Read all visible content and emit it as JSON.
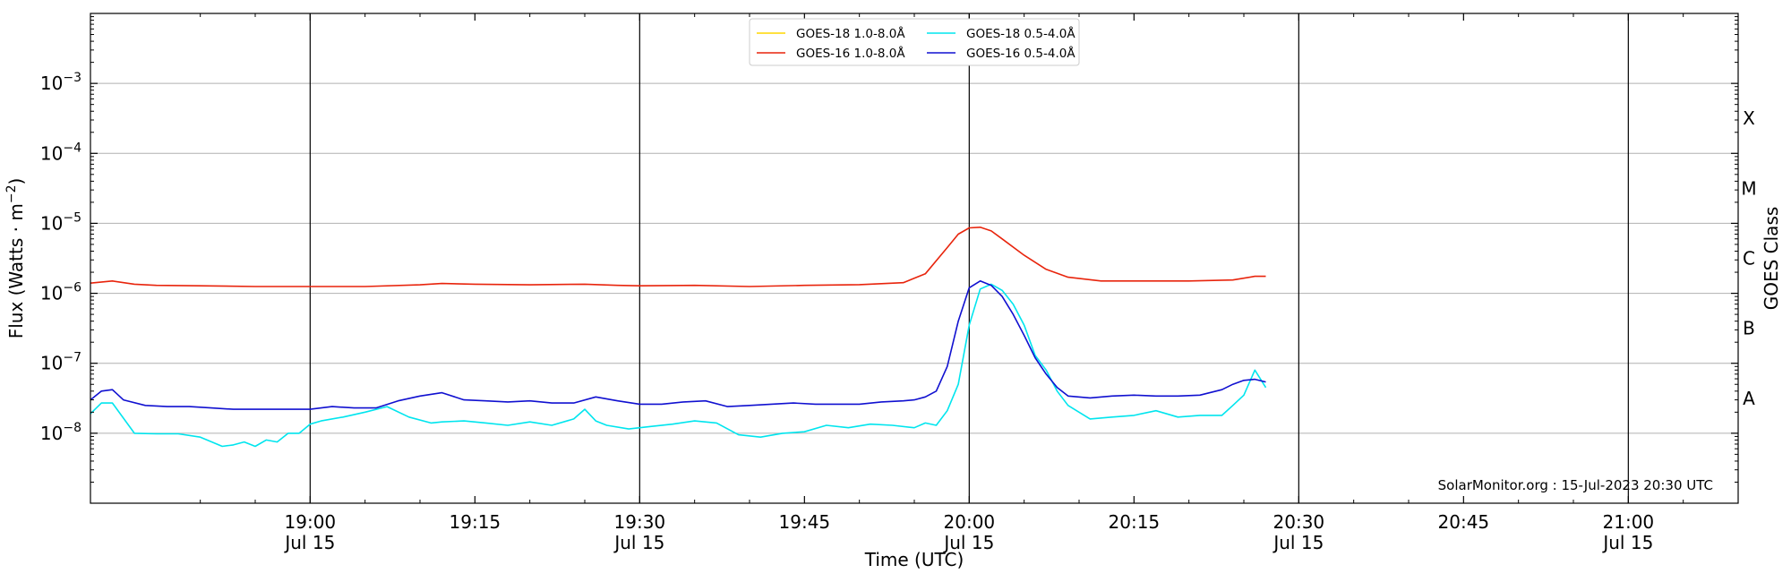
{
  "chart_data": {
    "type": "line",
    "xlabel": "Time (UTC)",
    "ylabel": "Flux (Watts · m⁻²)",
    "right_label": "GOES Class",
    "footer": "SolarMonitor.org : 15-Jul-2023 20:30 UTC",
    "y_scale": "log",
    "ylim": [
      "1e-9",
      "1e-2"
    ],
    "xlim": [
      "18:40",
      "21:10"
    ],
    "grid": "horizontal",
    "legend_position": "top-center",
    "x_ticks": [
      {
        "time": "19:00",
        "date": "Jul 15"
      },
      {
        "time": "19:15",
        "date": ""
      },
      {
        "time": "19:30",
        "date": "Jul 15"
      },
      {
        "time": "19:45",
        "date": ""
      },
      {
        "time": "20:00",
        "date": "Jul 15"
      },
      {
        "time": "20:15",
        "date": ""
      },
      {
        "time": "20:30",
        "date": "Jul 15"
      },
      {
        "time": "20:45",
        "date": ""
      },
      {
        "time": "21:00",
        "date": "Jul 15"
      }
    ],
    "vertical_lines": [
      "19:00",
      "19:30",
      "20:00",
      "20:30",
      "21:00"
    ],
    "y_ticks": [
      {
        "exp": -8,
        "label": "10",
        "sup": "−8"
      },
      {
        "exp": -7,
        "label": "10",
        "sup": "−7"
      },
      {
        "exp": -6,
        "label": "10",
        "sup": "−6"
      },
      {
        "exp": -5,
        "label": "10",
        "sup": "−5"
      },
      {
        "exp": -4,
        "label": "10",
        "sup": "−4"
      },
      {
        "exp": -3,
        "label": "10",
        "sup": "−3"
      }
    ],
    "goes_classes": [
      {
        "label": "A",
        "exp": -7.5
      },
      {
        "label": "B",
        "exp": -6.5
      },
      {
        "label": "C",
        "exp": -5.5
      },
      {
        "label": "M",
        "exp": -4.5
      },
      {
        "label": "X",
        "exp": -3.5
      }
    ],
    "series": [
      {
        "name": "GOES-18 1.0-8.0Å",
        "color": "#ffd700",
        "x": [],
        "y": []
      },
      {
        "name": "GOES-16 1.0-8.0Å",
        "color": "#e8240c",
        "x": [
          "18:40",
          "18:42",
          "18:44",
          "18:46",
          "18:50",
          "18:55",
          "19:00",
          "19:05",
          "19:10",
          "19:12",
          "19:15",
          "19:20",
          "19:25",
          "19:28",
          "19:30",
          "19:35",
          "19:40",
          "19:45",
          "19:50",
          "19:54",
          "19:56",
          "19:58",
          "19:59",
          "20:00",
          "20:01",
          "20:02",
          "20:03",
          "20:05",
          "20:07",
          "20:09",
          "20:12",
          "20:16",
          "20:20",
          "20:24",
          "20:26",
          "20:27"
        ],
        "y": [
          1.4e-06,
          1.5e-06,
          1.35e-06,
          1.3e-06,
          1.28e-06,
          1.25e-06,
          1.25e-06,
          1.25e-06,
          1.32e-06,
          1.38e-06,
          1.35e-06,
          1.32e-06,
          1.35e-06,
          1.3e-06,
          1.28e-06,
          1.3e-06,
          1.25e-06,
          1.3e-06,
          1.33e-06,
          1.42e-06,
          1.9e-06,
          4.5e-06,
          7e-06,
          8.6e-06,
          8.8e-06,
          7.8e-06,
          6e-06,
          3.5e-06,
          2.2e-06,
          1.7e-06,
          1.5e-06,
          1.5e-06,
          1.5e-06,
          1.55e-06,
          1.75e-06,
          1.75e-06
        ]
      },
      {
        "name": "GOES-18 0.5-4.0Å",
        "color": "#00e5ee",
        "x": [
          "18:40",
          "18:41",
          "18:42",
          "18:44",
          "18:46",
          "18:48",
          "18:50",
          "18:52",
          "18:53",
          "18:54",
          "18:55",
          "18:56",
          "18:57",
          "18:58",
          "18:59",
          "19:00",
          "19:01",
          "19:03",
          "19:05",
          "19:07",
          "19:09",
          "19:11",
          "19:12",
          "19:14",
          "19:16",
          "19:18",
          "19:20",
          "19:22",
          "19:24",
          "19:25",
          "19:26",
          "19:27",
          "19:29",
          "19:31",
          "19:33",
          "19:35",
          "19:37",
          "19:39",
          "19:41",
          "19:43",
          "19:45",
          "19:47",
          "19:49",
          "19:51",
          "19:53",
          "19:55",
          "19:56",
          "19:57",
          "19:58",
          "19:59",
          "20:00",
          "20:01",
          "20:02",
          "20:03",
          "20:04",
          "20:05",
          "20:06",
          "20:07",
          "20:08",
          "20:09",
          "20:11",
          "20:13",
          "20:15",
          "20:17",
          "20:19",
          "20:21",
          "20:23",
          "20:24",
          "20:25",
          "20:26",
          "20:27"
        ],
        "y": [
          1.9e-08,
          2.7e-08,
          2.7e-08,
          1e-08,
          9.8e-09,
          9.8e-09,
          8.8e-09,
          6.5e-09,
          6.8e-09,
          7.5e-09,
          6.5e-09,
          8e-09,
          7.5e-09,
          1e-08,
          1e-08,
          1.35e-08,
          1.5e-08,
          1.7e-08,
          2e-08,
          2.4e-08,
          1.7e-08,
          1.4e-08,
          1.45e-08,
          1.5e-08,
          1.4e-08,
          1.3e-08,
          1.45e-08,
          1.3e-08,
          1.6e-08,
          2.2e-08,
          1.5e-08,
          1.3e-08,
          1.15e-08,
          1.25e-08,
          1.35e-08,
          1.5e-08,
          1.4e-08,
          9.5e-09,
          8.8e-09,
          1e-08,
          1.05e-08,
          1.3e-08,
          1.2e-08,
          1.35e-08,
          1.3e-08,
          1.2e-08,
          1.4e-08,
          1.3e-08,
          2.1e-08,
          5e-08,
          3.5e-07,
          1.15e-06,
          1.35e-06,
          1.1e-06,
          7e-07,
          3.5e-07,
          1.3e-07,
          8e-08,
          4e-08,
          2.5e-08,
          1.6e-08,
          1.7e-08,
          1.8e-08,
          2.1e-08,
          1.7e-08,
          1.8e-08,
          1.8e-08,
          2.5e-08,
          3.5e-08,
          8e-08,
          4.5e-08
        ]
      },
      {
        "name": "GOES-16 0.5-4.0Å",
        "color": "#1010d0",
        "x": [
          "18:40",
          "18:41",
          "18:42",
          "18:43",
          "18:45",
          "18:47",
          "18:49",
          "18:51",
          "18:53",
          "18:55",
          "18:57",
          "18:58",
          "18:59",
          "19:00",
          "19:01",
          "19:02",
          "19:04",
          "19:06",
          "19:08",
          "19:10",
          "19:12",
          "19:14",
          "19:16",
          "19:18",
          "19:20",
          "19:22",
          "19:24",
          "19:26",
          "19:28",
          "19:30",
          "19:32",
          "19:34",
          "19:36",
          "19:38",
          "19:40",
          "19:42",
          "19:44",
          "19:46",
          "19:48",
          "19:50",
          "19:52",
          "19:54",
          "19:55",
          "19:56",
          "19:57",
          "19:58",
          "19:59",
          "20:00",
          "20:01",
          "20:02",
          "20:03",
          "20:04",
          "20:05",
          "20:06",
          "20:07",
          "20:08",
          "20:09",
          "20:11",
          "20:13",
          "20:15",
          "20:17",
          "20:19",
          "20:21",
          "20:23",
          "20:24",
          "20:25",
          "20:26",
          "20:27"
        ],
        "y": [
          3e-08,
          4e-08,
          4.2e-08,
          3e-08,
          2.5e-08,
          2.4e-08,
          2.4e-08,
          2.3e-08,
          2.2e-08,
          2.2e-08,
          2.2e-08,
          2.2e-08,
          2.2e-08,
          2.2e-08,
          2.3e-08,
          2.4e-08,
          2.3e-08,
          2.3e-08,
          2.9e-08,
          3.4e-08,
          3.8e-08,
          3e-08,
          2.9e-08,
          2.8e-08,
          2.9e-08,
          2.7e-08,
          2.7e-08,
          3.3e-08,
          2.9e-08,
          2.6e-08,
          2.6e-08,
          2.8e-08,
          2.9e-08,
          2.4e-08,
          2.5e-08,
          2.6e-08,
          2.7e-08,
          2.6e-08,
          2.6e-08,
          2.6e-08,
          2.8e-08,
          2.9e-08,
          3e-08,
          3.3e-08,
          4e-08,
          9e-08,
          4e-07,
          1.2e-06,
          1.5e-06,
          1.3e-06,
          9e-07,
          5e-07,
          2.5e-07,
          1.2e-07,
          7e-08,
          4.5e-08,
          3.4e-08,
          3.2e-08,
          3.4e-08,
          3.5e-08,
          3.4e-08,
          3.4e-08,
          3.5e-08,
          4.2e-08,
          5e-08,
          5.7e-08,
          5.9e-08,
          5.4e-08
        ]
      }
    ]
  }
}
